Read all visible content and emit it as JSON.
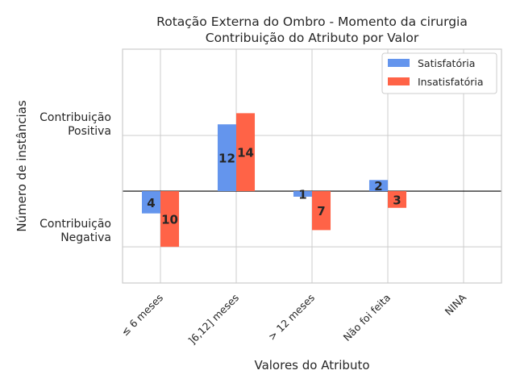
{
  "chart_data": {
    "type": "bar",
    "title_line1": "Rotação Externa do Ombro - Momento da cirurgia",
    "title_line2": "Contribuição do Atributo por Valor",
    "xlabel": "Valores do Atributo",
    "ylabel": "Número de instâncias",
    "y_region_labels": {
      "positive": [
        "Contribuição",
        "Positiva"
      ],
      "negative": [
        "Contribuição",
        "Negativa"
      ]
    },
    "categories": [
      "≤ 6 meses",
      "]6,12] meses",
      "> 12 meses",
      "Não foi feita",
      "NINA"
    ],
    "ylim": [
      -16.5,
      25.5
    ],
    "series": [
      {
        "name": "Satisfatória",
        "color": "#6495ED",
        "values": [
          -4,
          12,
          -1,
          2,
          0
        ],
        "labels": [
          "4",
          "12",
          "1",
          "2",
          ""
        ]
      },
      {
        "name": "Insatisfatória",
        "color": "#FF6347",
        "values": [
          -10,
          14,
          -7,
          -3,
          0
        ],
        "labels": [
          "10",
          "14",
          "7",
          "3",
          ""
        ]
      }
    ],
    "grid": true,
    "legend_position": "top-right"
  }
}
